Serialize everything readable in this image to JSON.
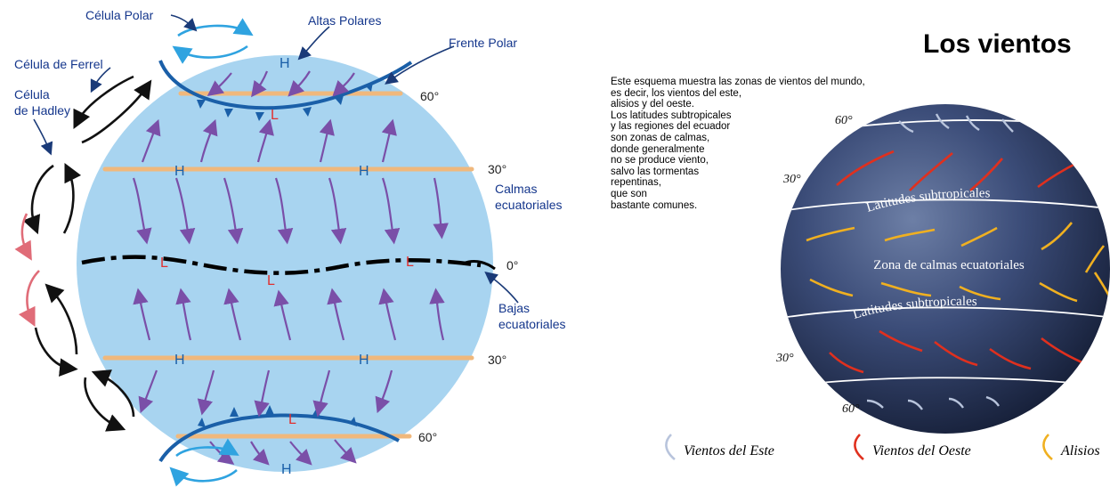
{
  "left": {
    "labels": {
      "celula_polar": "Célula Polar",
      "altas_polares": "Altas Polares",
      "frente_polar": "Frente Polar",
      "celula_ferrel": "Célula de Ferrel",
      "celula_hadley_1": "Célula",
      "celula_hadley_2": "de Hadley",
      "calmas_1": "Calmas",
      "calmas_2": "ecuatoriales",
      "bajas_1": "Bajas",
      "bajas_2": "ecuatoriales"
    },
    "latitudes": {
      "n60": "60°",
      "n30": "30°",
      "eq": "0°",
      "s30": "30°",
      "s60": "60°"
    },
    "pressure": {
      "high": "H",
      "low": "L"
    }
  },
  "right": {
    "title": "Los vientos",
    "description": [
      "Este esquema muestra las zonas de vientos del mundo,",
      "es decir, los vientos del este,",
      "alisios y del oeste.",
      "Los latitudes subtropicales",
      "y las regiones del ecuador",
      "son zonas de calmas,",
      "donde generalmente",
      "no se produce viento,",
      "salvo las tormentas",
      "repentinas,",
      "que son",
      "bastante comunes."
    ],
    "globe_labels": {
      "subtrop_n": "Latitudes subtropicales",
      "calmas": "Zona de calmas ecuatoriales",
      "subtrop_s": "Latitudes subtropicales"
    },
    "latitudes": {
      "n60": "60°",
      "n30": "30°",
      "s30": "30°",
      "s60": "60°"
    },
    "legend": {
      "este": "Vientos del Este",
      "oeste": "Vientos del Oeste",
      "alisios": "Alisios"
    },
    "colors": {
      "este": "#b8c4dc",
      "oeste": "#e0301e",
      "alisios": "#f0b020"
    }
  },
  "colors": {
    "globe": "#a8d4f0",
    "lat_line": "#f0b87c",
    "wind_arrow": "#7a4fa8",
    "front": "#1a5fa8",
    "cell_black": "#111111",
    "cell_pink": "#e06c78",
    "cell_polar": "#2fa3e0"
  }
}
